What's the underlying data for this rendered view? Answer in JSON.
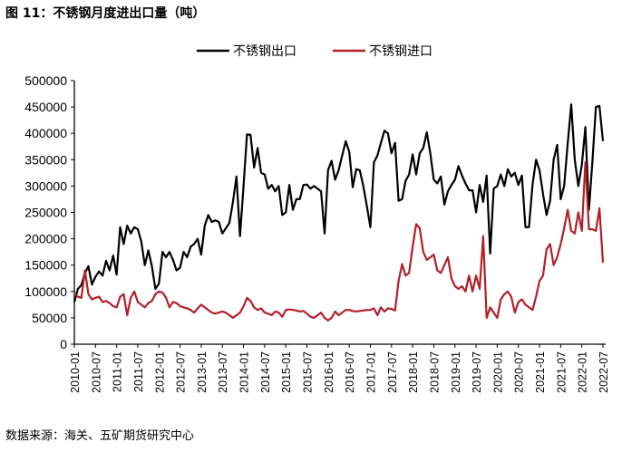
{
  "title": "图 11：不锈钢月度进出口量（吨）",
  "source": "数据来源：海关、五矿期货研究中心",
  "chart_data": {
    "type": "line",
    "title": "图 11：不锈钢月度进出口量（吨）",
    "xlabel": "",
    "ylabel": "",
    "ylim": [
      0,
      500000
    ],
    "yticks": [
      0,
      50000,
      100000,
      150000,
      200000,
      250000,
      300000,
      350000,
      400000,
      450000,
      500000
    ],
    "xstart": "2010-01",
    "xend": "2022-07",
    "xticks": [
      "2010-01",
      "2010-07",
      "2011-01",
      "2011-07",
      "2012-01",
      "2012-07",
      "2013-01",
      "2013-07",
      "2014-01",
      "2014-07",
      "2015-01",
      "2015-07",
      "2016-01",
      "2016-07",
      "2017-01",
      "2017-07",
      "2018-01",
      "2018-07",
      "2019-01",
      "2019-07",
      "2020-01",
      "2020-07",
      "2021-01",
      "2021-07",
      "2022-01",
      "2022-07"
    ],
    "legend_position": "top",
    "grid": false,
    "series": [
      {
        "name": "不锈钢出口",
        "color": "#000000",
        "values": [
          80000,
          105000,
          112000,
          135000,
          148000,
          113000,
          128000,
          138000,
          130000,
          158000,
          140000,
          168000,
          132000,
          222000,
          190000,
          225000,
          210000,
          222000,
          218000,
          195000,
          150000,
          178000,
          148000,
          105000,
          115000,
          175000,
          165000,
          175000,
          160000,
          140000,
          145000,
          175000,
          165000,
          185000,
          190000,
          200000,
          170000,
          225000,
          245000,
          232000,
          235000,
          232000,
          210000,
          220000,
          230000,
          270000,
          318000,
          205000,
          300000,
          398000,
          397000,
          335000,
          372000,
          325000,
          322000,
          295000,
          302000,
          290000,
          300000,
          245000,
          250000,
          302000,
          255000,
          275000,
          275000,
          302000,
          303000,
          295000,
          300000,
          295000,
          290000,
          210000,
          330000,
          348000,
          312000,
          330000,
          358000,
          385000,
          365000,
          298000,
          332000,
          330000,
          300000,
          262000,
          222000,
          345000,
          358000,
          382000,
          405000,
          400000,
          362000,
          382000,
          272000,
          275000,
          310000,
          322000,
          360000,
          322000,
          362000,
          372000,
          402000,
          362000,
          312000,
          305000,
          318000,
          265000,
          290000,
          302000,
          312000,
          338000,
          320000,
          305000,
          292000,
          292000,
          250000,
          302000,
          270000,
          320000,
          172000,
          295000,
          300000,
          322000,
          300000,
          332000,
          318000,
          325000,
          302000,
          320000,
          222000,
          222000,
          302000,
          350000,
          330000,
          285000,
          245000,
          272000,
          350000,
          378000,
          275000,
          300000,
          380000,
          455000,
          350000,
          300000,
          340000,
          412000,
          255000,
          345000,
          450000,
          452000,
          385000
        ]
      },
      {
        "name": "不锈钢进口",
        "color": "#b22028",
        "values": [
          95000,
          90000,
          88000,
          140000,
          95000,
          85000,
          88000,
          90000,
          80000,
          82000,
          78000,
          72000,
          70000,
          90000,
          95000,
          55000,
          88000,
          100000,
          80000,
          75000,
          70000,
          78000,
          82000,
          95000,
          100000,
          98000,
          88000,
          70000,
          80000,
          78000,
          72000,
          70000,
          68000,
          65000,
          60000,
          68000,
          75000,
          70000,
          65000,
          60000,
          58000,
          60000,
          62000,
          60000,
          55000,
          50000,
          55000,
          60000,
          72000,
          88000,
          82000,
          70000,
          65000,
          68000,
          60000,
          58000,
          55000,
          62000,
          60000,
          52000,
          65000,
          66000,
          65000,
          64000,
          62000,
          63000,
          58000,
          52000,
          50000,
          55000,
          60000,
          50000,
          45000,
          50000,
          62000,
          55000,
          60000,
          65000,
          65000,
          63000,
          62000,
          63000,
          64000,
          65000,
          65000,
          68000,
          55000,
          70000,
          62000,
          68000,
          67000,
          64000,
          120000,
          152000,
          130000,
          135000,
          185000,
          228000,
          220000,
          175000,
          160000,
          165000,
          170000,
          140000,
          135000,
          150000,
          165000,
          125000,
          110000,
          105000,
          110000,
          100000,
          130000,
          100000,
          130000,
          105000,
          205000,
          50000,
          70000,
          60000,
          50000,
          85000,
          95000,
          100000,
          90000,
          60000,
          80000,
          85000,
          75000,
          70000,
          65000,
          90000,
          120000,
          130000,
          180000,
          190000,
          150000,
          165000,
          190000,
          220000,
          255000,
          215000,
          210000,
          250000,
          215000,
          345000,
          218000,
          218000,
          215000,
          258000,
          155000
        ]
      }
    ]
  }
}
